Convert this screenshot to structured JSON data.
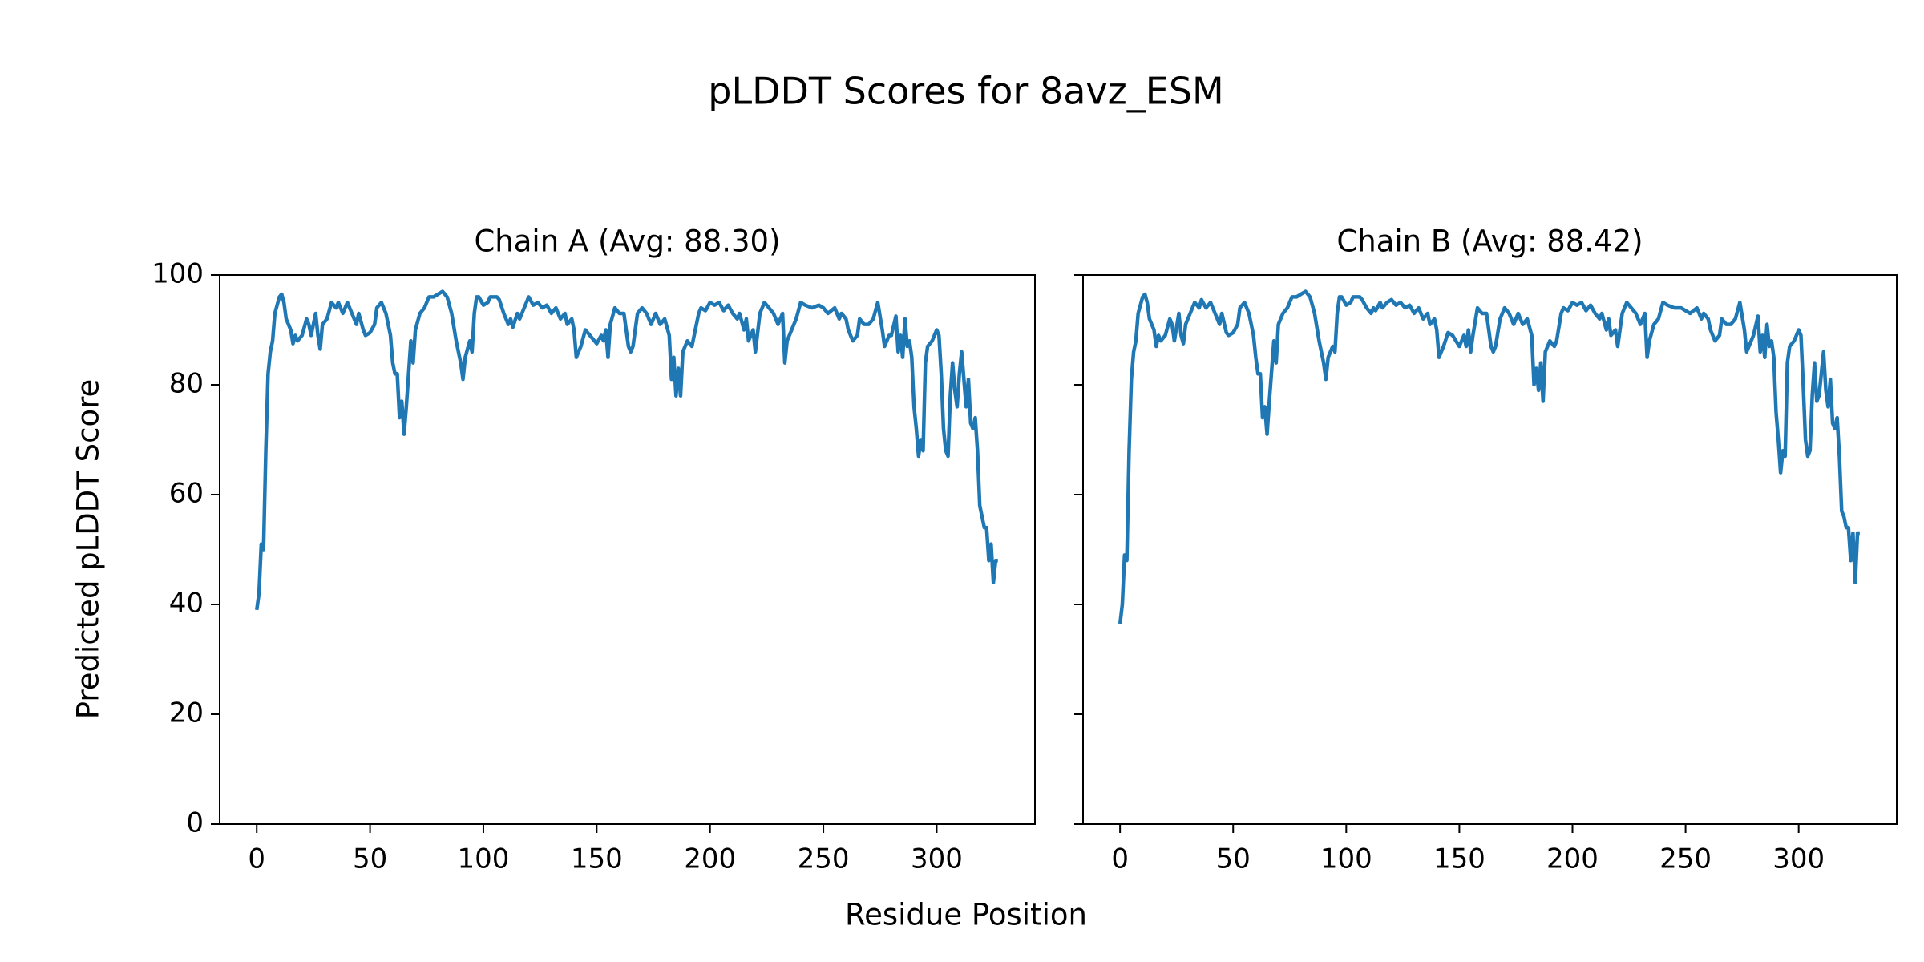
{
  "title": "pLDDT Scores for 8avz_ESM",
  "x_label": "Residue Position",
  "y_label": "Predicted pLDDT Score",
  "chart_data": [
    {
      "type": "line",
      "title": "Chain A (Avg: 88.30)",
      "color": "#1f77b4",
      "xlim": [
        -16.35,
        343.35
      ],
      "xticks": [
        0,
        50,
        100,
        150,
        200,
        250,
        300
      ],
      "ylim": [
        0,
        100
      ],
      "yticks": [
        0,
        20,
        40,
        60,
        80,
        100
      ],
      "x": [
        0,
        1,
        2,
        3,
        4,
        5,
        6,
        7,
        8,
        10,
        11,
        12,
        13,
        15,
        16,
        17,
        18,
        20,
        22,
        23,
        24,
        26,
        27,
        28,
        29,
        31,
        33,
        35,
        36,
        38,
        40,
        42,
        44,
        45,
        47,
        48,
        50,
        52,
        53,
        55,
        56,
        57,
        59,
        60,
        61,
        62,
        63,
        64,
        65,
        66,
        68,
        69,
        70,
        72,
        74,
        76,
        78,
        80,
        82,
        84,
        86,
        88,
        89,
        90,
        91,
        92,
        94,
        95,
        96,
        97,
        98,
        100,
        102,
        103,
        106,
        107,
        109,
        111,
        112,
        113,
        115,
        116,
        118,
        120,
        122,
        124,
        126,
        128,
        130,
        132,
        134,
        136,
        137,
        139,
        140,
        141,
        143,
        145,
        147,
        150,
        152,
        153,
        154,
        155,
        156,
        158,
        160,
        162,
        164,
        165,
        166,
        168,
        170,
        172,
        174,
        176,
        178,
        180,
        182,
        183,
        184,
        185,
        186,
        187,
        188,
        190,
        192,
        193,
        195,
        196,
        198,
        200,
        202,
        204,
        206,
        208,
        210,
        212,
        213,
        215,
        216,
        217,
        219,
        220,
        222,
        224,
        226,
        228,
        230,
        232,
        233,
        234,
        236,
        238,
        240,
        242,
        245,
        248,
        250,
        252,
        255,
        257,
        258,
        260,
        261,
        263,
        265,
        266,
        268,
        270,
        272,
        274,
        276,
        277,
        279,
        280,
        282,
        283,
        284,
        285,
        286,
        287,
        288,
        289,
        290,
        291,
        292,
        293,
        294,
        295,
        296,
        298,
        300,
        301,
        302,
        303,
        304,
        305,
        306,
        307,
        308,
        309,
        310,
        311,
        312,
        313,
        314,
        315,
        316,
        317,
        318,
        319,
        320,
        321,
        322,
        323,
        324,
        325,
        326,
        327
      ],
      "values": [
        39,
        42,
        51,
        50,
        68,
        82,
        86,
        88,
        93,
        96,
        96.5,
        95,
        92,
        90,
        87.5,
        89,
        88,
        89,
        92,
        91,
        89,
        93,
        89,
        86.5,
        91,
        92,
        95,
        94,
        95,
        93,
        95,
        93,
        91,
        93,
        90,
        89,
        89.5,
        91,
        94,
        95,
        94,
        93,
        89,
        84,
        82,
        82,
        74,
        77,
        71,
        76,
        88,
        84,
        90,
        93,
        94,
        96,
        96,
        96.5,
        97,
        96,
        93,
        88,
        86,
        84,
        81,
        85,
        88,
        86,
        93,
        96,
        96,
        94.5,
        95,
        96,
        96,
        95.5,
        93,
        91,
        92,
        90.5,
        93,
        92,
        94,
        96,
        94.5,
        95,
        94,
        94.5,
        93,
        94,
        92,
        93,
        91,
        92,
        90,
        85,
        87,
        90,
        89,
        87.5,
        89,
        88,
        90,
        85,
        91,
        94,
        93,
        93,
        87,
        86,
        87,
        93,
        94,
        93,
        91,
        93,
        91,
        92,
        89,
        81,
        85,
        78,
        83,
        78,
        86,
        88,
        87,
        89,
        93,
        94,
        93.5,
        95,
        94.5,
        95,
        93.5,
        94.5,
        93,
        92,
        93,
        90,
        92,
        88,
        90,
        86,
        93,
        95,
        94,
        93,
        91,
        93,
        84,
        88,
        90,
        92,
        95,
        94.5,
        94,
        94.5,
        94,
        93,
        94,
        92,
        93,
        92,
        90,
        88,
        89,
        92,
        91,
        91,
        92,
        95,
        90,
        87,
        89,
        89,
        92.5,
        86,
        89,
        85,
        92,
        87,
        88,
        85,
        76,
        72,
        67,
        70,
        68,
        84,
        87,
        88,
        90,
        89,
        82,
        72,
        68,
        67,
        78,
        84,
        79,
        76,
        82,
        86,
        81,
        76,
        81,
        73,
        72,
        74,
        68,
        58,
        56,
        54,
        54,
        48,
        51,
        44,
        48,
        48
      ]
    },
    {
      "type": "line",
      "title": "Chain B (Avg: 88.42)",
      "color": "#1f77b4",
      "xlim": [
        -16.35,
        343.35
      ],
      "xticks": [
        0,
        50,
        100,
        150,
        200,
        250,
        300
      ],
      "ylim": [
        0,
        100
      ],
      "yticks": [
        0,
        20,
        40,
        60,
        80,
        100
      ],
      "x": [
        0,
        1,
        2,
        3,
        4,
        5,
        6,
        7,
        8,
        10,
        11,
        12,
        13,
        15,
        16,
        17,
        18,
        20,
        22,
        23,
        24,
        26,
        27,
        28,
        29,
        31,
        33,
        35,
        36,
        38,
        40,
        42,
        44,
        45,
        47,
        48,
        50,
        52,
        53,
        55,
        56,
        57,
        59,
        60,
        61,
        62,
        63,
        64,
        65,
        66,
        68,
        69,
        70,
        72,
        74,
        76,
        78,
        80,
        82,
        84,
        86,
        88,
        89,
        90,
        91,
        92,
        94,
        95,
        96,
        97,
        98,
        100,
        102,
        103,
        106,
        107,
        109,
        111,
        112,
        113,
        115,
        116,
        118,
        120,
        122,
        124,
        126,
        128,
        130,
        132,
        134,
        136,
        137,
        139,
        140,
        141,
        143,
        145,
        147,
        150,
        152,
        153,
        154,
        155,
        156,
        158,
        160,
        162,
        164,
        165,
        166,
        168,
        170,
        172,
        174,
        176,
        178,
        180,
        182,
        183,
        184,
        185,
        186,
        187,
        188,
        190,
        192,
        193,
        195,
        196,
        198,
        200,
        202,
        204,
        206,
        208,
        210,
        212,
        213,
        215,
        216,
        217,
        219,
        220,
        222,
        224,
        226,
        228,
        230,
        232,
        233,
        234,
        236,
        238,
        240,
        242,
        245,
        248,
        250,
        252,
        255,
        257,
        258,
        260,
        261,
        263,
        265,
        266,
        268,
        270,
        272,
        274,
        276,
        277,
        279,
        280,
        282,
        283,
        284,
        285,
        286,
        287,
        288,
        289,
        290,
        291,
        292,
        293,
        294,
        295,
        296,
        298,
        300,
        301,
        302,
        303,
        304,
        305,
        306,
        307,
        308,
        309,
        310,
        311,
        312,
        313,
        314,
        315,
        316,
        317,
        318,
        319,
        320,
        321,
        322,
        323,
        324,
        325,
        326,
        327
      ],
      "values": [
        36.5,
        40,
        49,
        48,
        68,
        81,
        86,
        88,
        93,
        96,
        96.5,
        95,
        92,
        90,
        87,
        89,
        88,
        89,
        92,
        91,
        88,
        93,
        89,
        87.5,
        91,
        93,
        95,
        94,
        95.5,
        94,
        95,
        93,
        91,
        93,
        89.5,
        89,
        89.5,
        91,
        94,
        95,
        94,
        93,
        89,
        85,
        82,
        82,
        74,
        76,
        71,
        77,
        88,
        84,
        91,
        93,
        94,
        96,
        96,
        96.5,
        97,
        96,
        93,
        88,
        86,
        84,
        81,
        85,
        87,
        86,
        93,
        96,
        96,
        94.5,
        95,
        96,
        96,
        95.5,
        94,
        93,
        94,
        93.5,
        95,
        94,
        95,
        95.5,
        94.5,
        95,
        94,
        94.5,
        93,
        94,
        92,
        93,
        91,
        92,
        90,
        85,
        87,
        89.5,
        89,
        87,
        89,
        87,
        90,
        86,
        89,
        94,
        93,
        93,
        87,
        86,
        87,
        92,
        94,
        93,
        91,
        93,
        91,
        92,
        89,
        80,
        83,
        79,
        84,
        77,
        86,
        88,
        87,
        88,
        93,
        94,
        93.5,
        95,
        94.5,
        95,
        93.5,
        94.5,
        93,
        92,
        93,
        90,
        92,
        89,
        90,
        87,
        93,
        95,
        94,
        93,
        91,
        93,
        85,
        88,
        91,
        92,
        95,
        94.5,
        94,
        94,
        93.5,
        93,
        94,
        92,
        93,
        92,
        90,
        88,
        89,
        92,
        91,
        91,
        92,
        95,
        90,
        86,
        88,
        89,
        92.5,
        86,
        89,
        85,
        91,
        87,
        88,
        85,
        75,
        70,
        64,
        68,
        67,
        84,
        87,
        88,
        90,
        89,
        80,
        70,
        67,
        68,
        78,
        84,
        77,
        78,
        82,
        86,
        79,
        76,
        81,
        73,
        72,
        74,
        67,
        57,
        56,
        54,
        54,
        48,
        53,
        44,
        53,
        53
      ]
    }
  ]
}
